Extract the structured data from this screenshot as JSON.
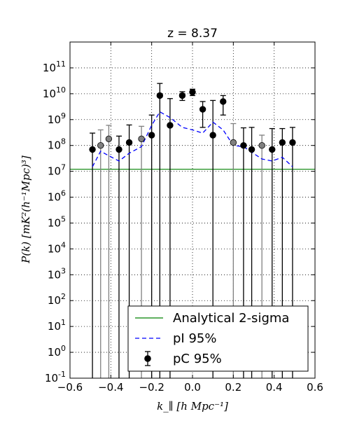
{
  "chart_data": {
    "type": "scatter",
    "title": "z = 8.37",
    "xlabel": "k_∥ [h Mpc⁻¹]",
    "ylabel": "P(k) [mK²(h⁻¹Mpc)³]",
    "xlim": [
      -0.6,
      0.6
    ],
    "ylim": [
      0.1,
      1000000000000.0
    ],
    "yscale": "log",
    "grid": true,
    "legend_position": "lower-right",
    "x_ticks": [
      -0.6,
      -0.4,
      -0.2,
      0.0,
      0.2,
      0.4,
      0.6
    ],
    "x_tick_labels": [
      "−0.6",
      "−0.4",
      "−0.2",
      "0.0",
      "0.2",
      "0.4",
      "0.6"
    ],
    "y_ticks": [
      {
        "value": 0.1,
        "base": "10",
        "exp": "-1"
      },
      {
        "value": 1,
        "base": "10",
        "exp": "0"
      },
      {
        "value": 10,
        "base": "10",
        "exp": "1"
      },
      {
        "value": 100,
        "base": "10",
        "exp": "2"
      },
      {
        "value": 1000,
        "base": "10",
        "exp": "3"
      },
      {
        "value": 10000,
        "base": "10",
        "exp": "4"
      },
      {
        "value": 100000,
        "base": "10",
        "exp": "5"
      },
      {
        "value": 1000000,
        "base": "10",
        "exp": "6"
      },
      {
        "value": 10000000,
        "base": "10",
        "exp": "7"
      },
      {
        "value": 100000000,
        "base": "10",
        "exp": "8"
      },
      {
        "value": 1000000000,
        "base": "10",
        "exp": "9"
      },
      {
        "value": 10000000000,
        "base": "10",
        "exp": "10"
      },
      {
        "value": 100000000000,
        "base": "10",
        "exp": "11"
      }
    ],
    "colors": {
      "analytical": "#008000",
      "pI": "#0000ff",
      "pC_positive": "#000000",
      "pC_negative": "#808080"
    },
    "series": [
      {
        "name": "Analytical 2-sigma",
        "style": "solid-line",
        "y": 12000000
      },
      {
        "name": "pI 95%",
        "style": "dashed-line",
        "x": [
          -0.49,
          -0.45,
          -0.41,
          -0.36,
          -0.31,
          -0.25,
          -0.2,
          -0.16,
          -0.11,
          -0.05,
          0.0,
          0.05,
          0.1,
          0.15,
          0.2,
          0.25,
          0.29,
          0.34,
          0.39,
          0.44,
          0.49
        ],
        "values": [
          15000000,
          60000000,
          40000000,
          25000000,
          50000000,
          90000000,
          600000000,
          2000000000,
          1200000000,
          500000000,
          400000000,
          300000000,
          800000000,
          400000000,
          100000000,
          90000000,
          55000000,
          30000000,
          25000000,
          35000000,
          15000000
        ]
      },
      {
        "name": "pC 95%",
        "style": "errorbar-points",
        "points": [
          {
            "x": -0.49,
            "y": 70000000,
            "upper": 300000000,
            "lower_clipped": true,
            "negative": false
          },
          {
            "x": -0.45,
            "y": 100000000,
            "upper": 400000000,
            "lower_clipped": true,
            "negative": true
          },
          {
            "x": -0.41,
            "y": 180000000,
            "upper": 600000000,
            "lower_clipped": true,
            "negative": true
          },
          {
            "x": -0.36,
            "y": 70000000,
            "upper": 230000000,
            "lower_clipped": true,
            "negative": false
          },
          {
            "x": -0.31,
            "y": 130000000,
            "upper": 620000000,
            "lower_clipped": true,
            "negative": false
          },
          {
            "x": -0.25,
            "y": 180000000,
            "upper": 550000000,
            "lower_clipped": true,
            "negative": true
          },
          {
            "x": -0.2,
            "y": 250000000,
            "upper": 1500000000,
            "lower_clipped": true,
            "negative": false
          },
          {
            "x": -0.16,
            "y": 8500000000,
            "upper": 25000000000,
            "lower_clipped": true,
            "negative": false
          },
          {
            "x": -0.11,
            "y": 600000000,
            "upper": 6500000000,
            "lower_clipped": true,
            "negative": false
          },
          {
            "x": -0.05,
            "y": 8500000000,
            "upper": 12000000000,
            "lower": 5500000000,
            "lower_clipped": false,
            "negative": false
          },
          {
            "x": 0.0,
            "y": 11500000000,
            "upper": 15000000000,
            "lower": 8500000000,
            "lower_clipped": false,
            "negative": false
          },
          {
            "x": 0.05,
            "y": 2500000000,
            "upper": 5000000000,
            "lower": 500000000,
            "lower_clipped": false,
            "negative": false
          },
          {
            "x": 0.1,
            "y": 250000000,
            "upper": 5500000000,
            "lower_clipped": true,
            "negative": false
          },
          {
            "x": 0.15,
            "y": 5000000000,
            "upper": 8500000000,
            "lower": 1500000000,
            "lower_clipped": false,
            "negative": false
          },
          {
            "x": 0.2,
            "y": 130000000,
            "upper": 700000000,
            "lower_clipped": true,
            "negative": true
          },
          {
            "x": 0.25,
            "y": 100000000,
            "upper": 480000000,
            "lower_clipped": true,
            "negative": false
          },
          {
            "x": 0.29,
            "y": 70000000,
            "upper": 500000000,
            "lower_clipped": true,
            "negative": false
          },
          {
            "x": 0.34,
            "y": 100000000,
            "upper": 250000000,
            "lower_clipped": true,
            "negative": true
          },
          {
            "x": 0.39,
            "y": 70000000,
            "upper": 450000000,
            "lower_clipped": true,
            "negative": false
          },
          {
            "x": 0.44,
            "y": 130000000,
            "upper": 450000000,
            "lower_clipped": true,
            "negative": false
          },
          {
            "x": 0.49,
            "y": 130000000,
            "upper": 500000000,
            "lower_clipped": true,
            "negative": false
          }
        ]
      }
    ]
  }
}
